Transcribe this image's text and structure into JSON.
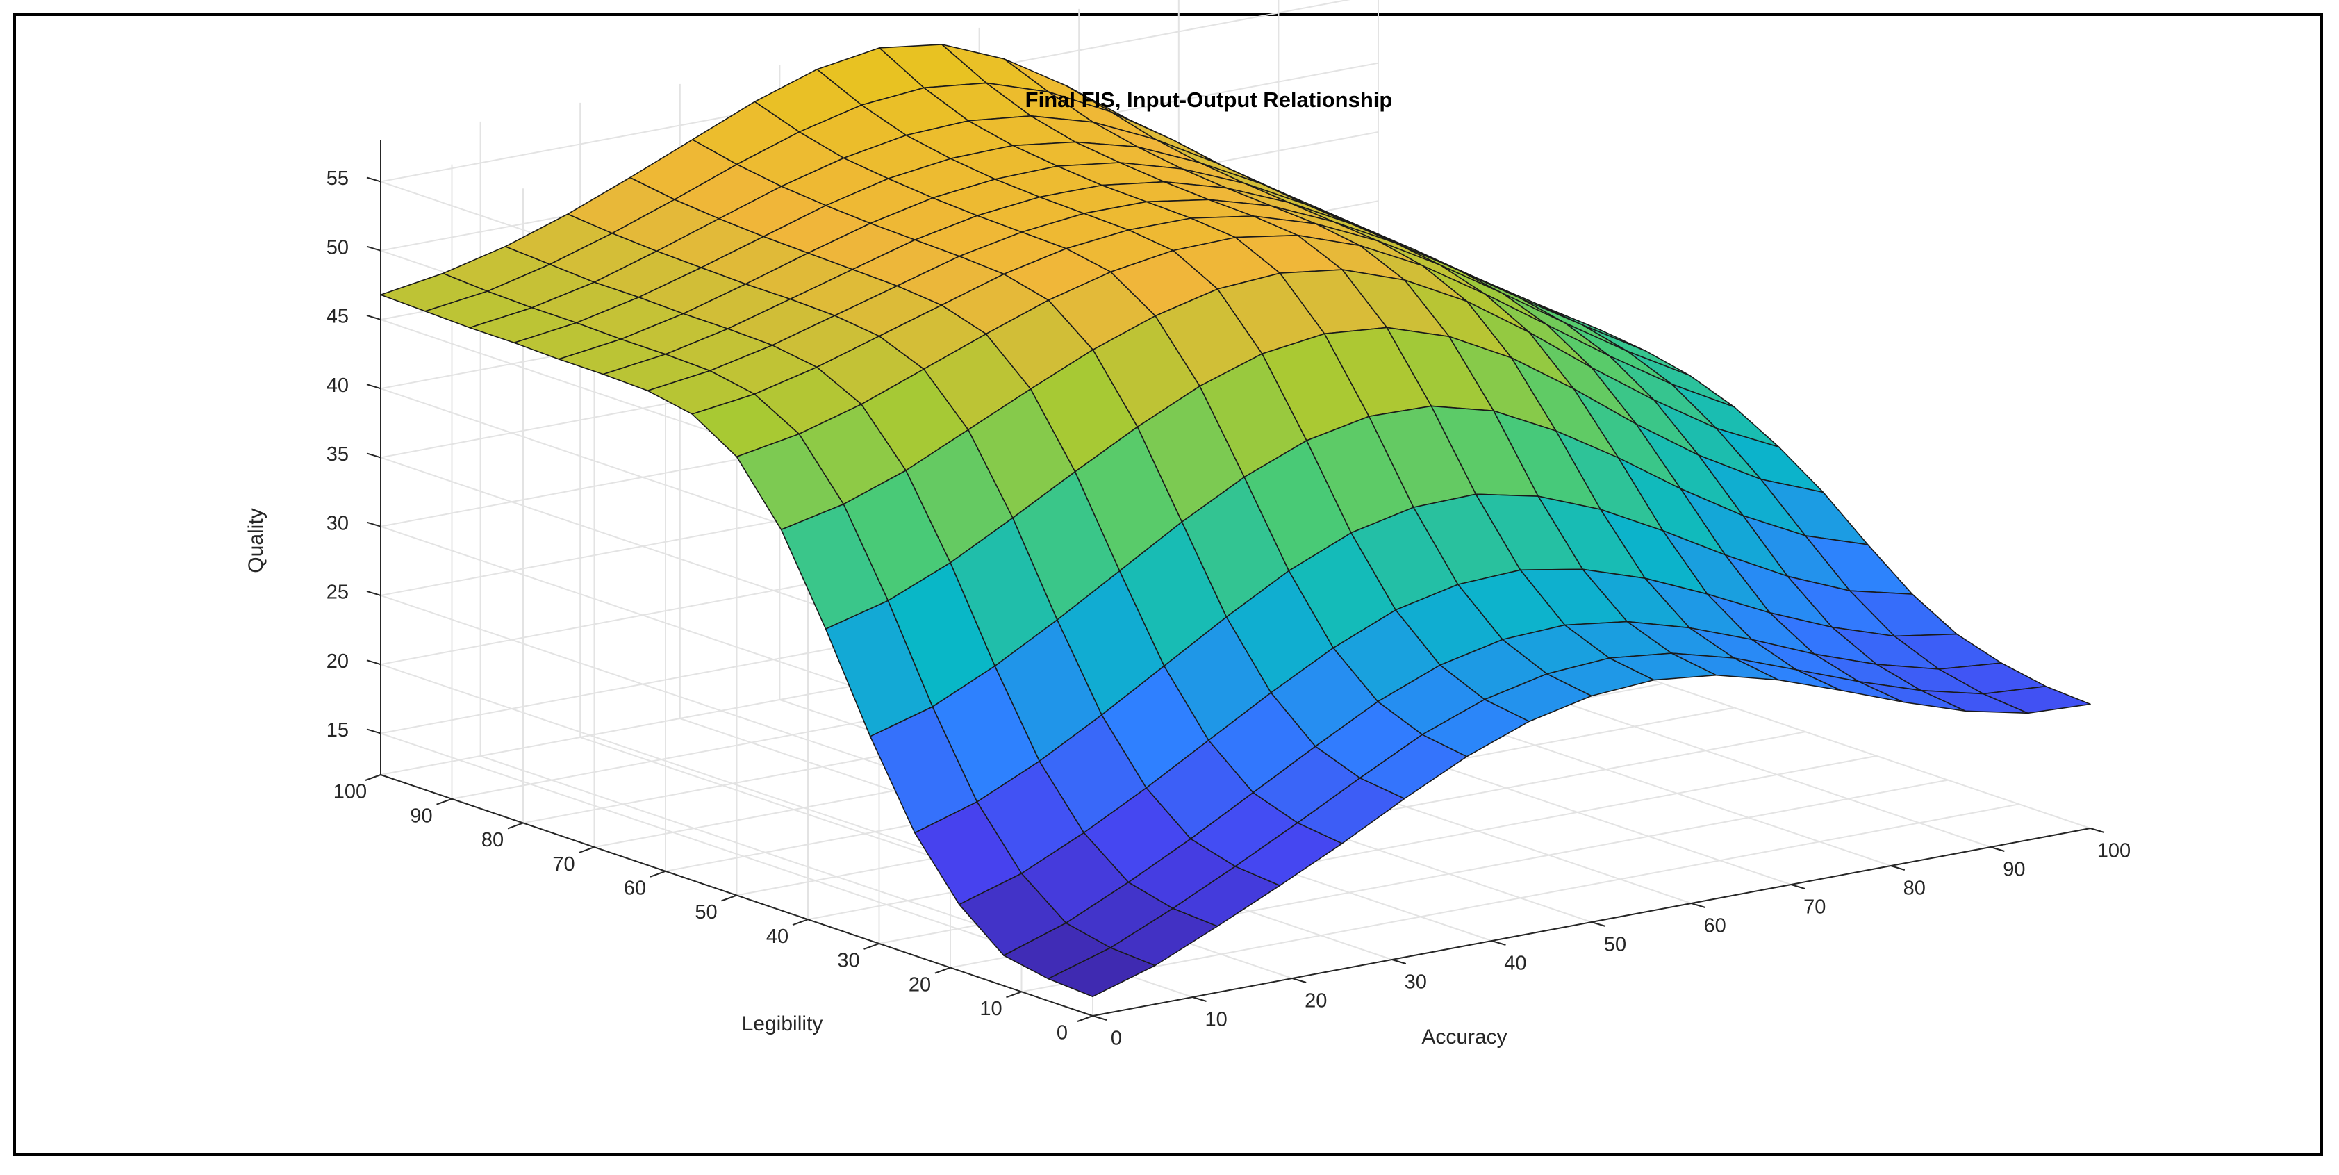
{
  "colors": {
    "background": "#ffffff",
    "frame": "#000000",
    "grid": "#e3e3e3",
    "axis": "#262626",
    "edge": "#1a1a1a",
    "colormap": [
      "#3e26a8",
      "#4743f0",
      "#2f80ff",
      "#09b8c6",
      "#4ccb73",
      "#a9c933",
      "#f0b63a",
      "#e6c51c"
    ]
  },
  "chart_data": {
    "type": "surface",
    "title": "Final FIS, Input-Output Relationship",
    "xlabel": "Accuracy",
    "ylabel": "Legibility",
    "zlabel": "Quality",
    "xlim": [
      0,
      100
    ],
    "ylim": [
      0,
      100
    ],
    "zlim": [
      12,
      58
    ],
    "x_ticks": [
      "0",
      "10",
      "20",
      "30",
      "40",
      "50",
      "60",
      "70",
      "80",
      "90",
      "100"
    ],
    "y_ticks": [
      "0",
      "10",
      "20",
      "30",
      "40",
      "50",
      "60",
      "70",
      "80",
      "90",
      "100"
    ],
    "z_ticks": [
      "15",
      "20",
      "25",
      "30",
      "35",
      "40",
      "45",
      "50",
      "55"
    ],
    "grid": true,
    "mesh_x": [
      0,
      6.25,
      12.5,
      18.75,
      25,
      31.25,
      37.5,
      43.75,
      50,
      56.25,
      62.5,
      68.75,
      75,
      81.25,
      87.5,
      93.75,
      100
    ],
    "mesh_y": [
      0,
      6.25,
      12.5,
      18.75,
      25,
      31.25,
      37.5,
      43.75,
      50,
      56.25,
      62.5,
      68.75,
      75,
      81.25,
      87.5,
      93.75,
      100
    ],
    "z_rows": [
      [
        13.4,
        14.8,
        16.8,
        18.9,
        21.1,
        23.5,
        25.7,
        27.4,
        28.4,
        28.7,
        28.2,
        27.0,
        25.4,
        23.7,
        22.2,
        21.2,
        21.0
      ],
      [
        13.6,
        15.0,
        17.0,
        19.2,
        21.5,
        23.9,
        26.2,
        27.9,
        28.9,
        29.2,
        28.7,
        27.5,
        25.8,
        24.1,
        22.6,
        21.5,
        21.2
      ],
      [
        14.2,
        15.7,
        17.8,
        20.1,
        22.6,
        25.1,
        27.5,
        29.3,
        30.3,
        30.5,
        29.9,
        28.6,
        26.9,
        25.0,
        23.4,
        22.2,
        21.8
      ],
      [
        16.8,
        18.2,
        20.3,
        22.7,
        25.3,
        27.9,
        30.3,
        32.2,
        33.2,
        33.4,
        32.6,
        31.1,
        29.1,
        26.9,
        25.0,
        23.5,
        22.8
      ],
      [
        20.9,
        22.3,
        24.4,
        26.9,
        29.6,
        32.3,
        34.8,
        36.7,
        37.7,
        37.8,
        36.8,
        35.0,
        32.6,
        30.0,
        27.6,
        25.7,
        24.6
      ],
      [
        26.8,
        28.1,
        30.2,
        32.7,
        35.4,
        38.1,
        40.5,
        42.3,
        43.2,
        43.1,
        41.9,
        39.6,
        36.8,
        33.7,
        30.9,
        28.6,
        27.1
      ],
      [
        33.5,
        34.7,
        36.6,
        39.0,
        41.5,
        43.9,
        46.0,
        47.5,
        48.1,
        47.7,
        46.2,
        43.8,
        40.7,
        37.3,
        34.2,
        31.6,
        29.8
      ],
      [
        39.6,
        40.6,
        42.2,
        44.3,
        46.4,
        48.4,
        50.0,
        51.1,
        51.4,
        50.8,
        49.2,
        46.8,
        43.7,
        40.3,
        37.1,
        34.2,
        32.0
      ],
      [
        43.8,
        44.6,
        45.9,
        47.6,
        49.3,
        50.9,
        52.1,
        52.8,
        52.9,
        52.2,
        50.6,
        48.3,
        45.4,
        42.3,
        39.2,
        36.3,
        33.8
      ],
      [
        45.8,
        46.4,
        47.5,
        48.9,
        50.3,
        51.7,
        52.7,
        53.2,
        53.2,
        52.5,
        51.1,
        49.0,
        46.4,
        43.5,
        40.5,
        37.6,
        35.0
      ],
      [
        46.4,
        47.0,
        48.0,
        49.3,
        50.6,
        51.9,
        52.8,
        53.3,
        53.3,
        52.6,
        51.3,
        49.3,
        46.9,
        44.1,
        41.2,
        38.4,
        35.7
      ],
      [
        46.5,
        47.1,
        48.1,
        49.4,
        50.7,
        52.0,
        52.9,
        53.4,
        53.4,
        52.8,
        51.5,
        49.6,
        47.2,
        44.5,
        41.6,
        38.8,
        36.1
      ],
      [
        46.5,
        47.1,
        48.1,
        49.4,
        50.8,
        52.1,
        53.1,
        53.6,
        53.7,
        53.1,
        51.8,
        49.9,
        47.5,
        44.8,
        41.9,
        39.0,
        36.3
      ],
      [
        46.6,
        47.2,
        48.2,
        49.5,
        50.9,
        52.3,
        53.4,
        54.0,
        54.1,
        53.5,
        52.3,
        50.3,
        47.9,
        45.1,
        42.1,
        39.2,
        36.4
      ],
      [
        46.6,
        47.2,
        48.2,
        49.6,
        51.1,
        52.6,
        53.8,
        54.6,
        54.8,
        54.3,
        53.0,
        50.9,
        48.3,
        45.4,
        42.3,
        39.3,
        36.5
      ],
      [
        46.7,
        47.3,
        48.4,
        49.8,
        51.4,
        53.1,
        54.6,
        55.7,
        56.1,
        55.6,
        54.1,
        51.8,
        48.9,
        45.7,
        42.5,
        39.4,
        36.6
      ],
      [
        46.8,
        47.5,
        48.6,
        50.1,
        51.9,
        53.8,
        55.7,
        57.2,
        57.9,
        57.3,
        55.4,
        52.6,
        49.3,
        45.9,
        42.6,
        39.5,
        36.6
      ]
    ]
  }
}
